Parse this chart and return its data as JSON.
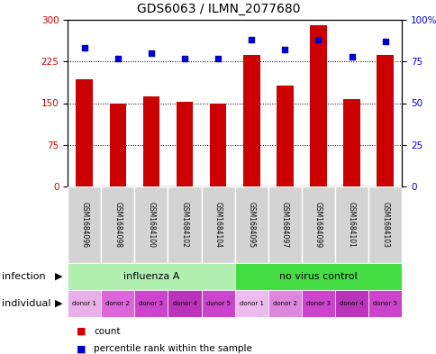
{
  "title": "GDS6063 / ILMN_2077680",
  "samples": [
    "GSM1684096",
    "GSM1684098",
    "GSM1684100",
    "GSM1684102",
    "GSM1684104",
    "GSM1684095",
    "GSM1684097",
    "GSM1684099",
    "GSM1684101",
    "GSM1684103"
  ],
  "counts": [
    193,
    150,
    162,
    153,
    150,
    237,
    182,
    291,
    157,
    237
  ],
  "percentiles": [
    83,
    77,
    80,
    77,
    77,
    88,
    82,
    88,
    78,
    87
  ],
  "ylim_left": [
    0,
    300
  ],
  "ylim_right": [
    0,
    100
  ],
  "yticks_left": [
    0,
    75,
    150,
    225,
    300
  ],
  "yticks_right": [
    0,
    25,
    50,
    75,
    100
  ],
  "infection_labels": [
    "influenza A",
    "no virus control"
  ],
  "infection_colors": [
    "#b2f0b2",
    "#44dd44"
  ],
  "individual_colors": [
    "#f0b0f0",
    "#dd66dd",
    "#cc55cc",
    "#bb44bb",
    "#dd44dd",
    "#f0c0f0",
    "#dd88dd",
    "#dd55dd",
    "#cc44cc",
    "#dd44dd"
  ],
  "bar_color": "#cc0000",
  "point_color": "#0000cc",
  "bg_color": "#d3d3d3",
  "label_infection": "infection",
  "label_individual": "individual",
  "legend_count": "count",
  "legend_percentile": "percentile rank within the sample",
  "individual_labels": [
    "donor 1",
    "donor 2",
    "donor 3",
    "donor 4",
    "donor 5",
    "donor 1",
    "donor 2",
    "donor 3",
    "donor 4",
    "donor 5"
  ]
}
